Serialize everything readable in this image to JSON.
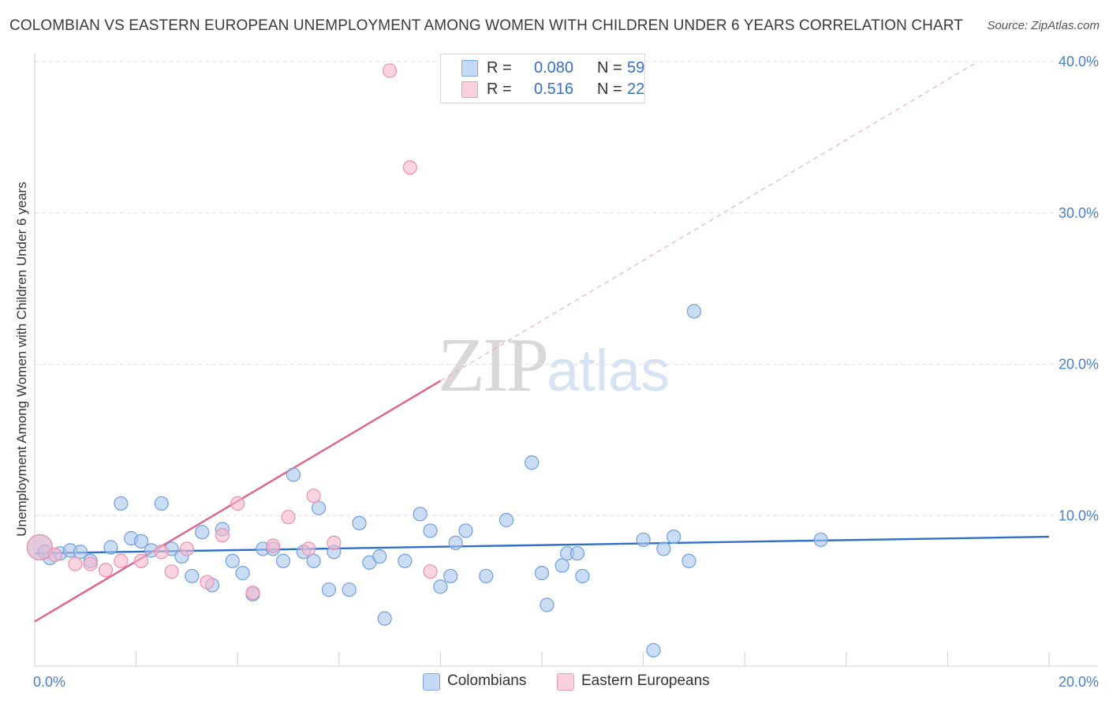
{
  "title": "COLOMBIAN VS EASTERN EUROPEAN UNEMPLOYMENT AMONG WOMEN WITH CHILDREN UNDER 6 YEARS CORRELATION CHART",
  "source": "Source: ZipAtlas.com",
  "watermark": {
    "zip": "ZIP",
    "atlas": "atlas"
  },
  "legend": {
    "rows": [
      {
        "r_label": "R =",
        "r_value": "0.080",
        "n_label": "N =",
        "n_value": "59",
        "color": "#a8c6ee"
      },
      {
        "r_label": "R =",
        "r_value": "0.516",
        "n_label": "N =",
        "n_value": "22",
        "color": "#f7b8cb"
      }
    ]
  },
  "bottom_legend": {
    "colombians": "Colombians",
    "eastern": "Eastern Europeans"
  },
  "chart_data": {
    "type": "scatter",
    "title": "COLOMBIAN VS EASTERN EUROPEAN UNEMPLOYMENT AMONG WOMEN WITH CHILDREN UNDER 6 YEARS CORRELATION CHART",
    "xlabel": "",
    "ylabel": "Unemployment Among Women with Children Under 6 years",
    "xlim": [
      0,
      20
    ],
    "ylim": [
      0,
      40
    ],
    "x_tick_labels": [
      {
        "value": 0,
        "label": "0.0%"
      },
      {
        "value": 20,
        "label": "20.0%"
      }
    ],
    "y_tick_labels": [
      {
        "value": 10,
        "label": "10.0%"
      },
      {
        "value": 20,
        "label": "20.0%"
      },
      {
        "value": 30,
        "label": "30.0%"
      },
      {
        "value": 40,
        "label": "40.0%"
      }
    ],
    "grid": true,
    "series": [
      {
        "name": "Colombians",
        "color": "#a8c6ee",
        "stroke": "#6f9fe0",
        "trend": {
          "x": [
            0,
            20
          ],
          "y": [
            7.5,
            8.6
          ],
          "color": "#2f6fcc"
        },
        "points": [
          [
            0.1,
            7.9
          ],
          [
            0.3,
            7.2
          ],
          [
            0.5,
            7.5
          ],
          [
            0.7,
            7.7
          ],
          [
            0.9,
            7.6
          ],
          [
            1.1,
            7.0
          ],
          [
            1.5,
            7.9
          ],
          [
            1.7,
            10.8
          ],
          [
            1.9,
            8.5
          ],
          [
            2.1,
            8.3
          ],
          [
            2.3,
            7.7
          ],
          [
            2.5,
            10.8
          ],
          [
            2.7,
            7.8
          ],
          [
            2.9,
            7.3
          ],
          [
            3.1,
            6.0
          ],
          [
            3.3,
            8.9
          ],
          [
            3.5,
            5.4
          ],
          [
            3.7,
            9.1
          ],
          [
            3.9,
            7.0
          ],
          [
            4.1,
            6.2
          ],
          [
            4.3,
            4.8
          ],
          [
            4.5,
            7.8
          ],
          [
            4.7,
            7.8
          ],
          [
            4.9,
            7.0
          ],
          [
            5.1,
            12.7
          ],
          [
            5.3,
            7.6
          ],
          [
            5.5,
            7.0
          ],
          [
            5.6,
            10.5
          ],
          [
            5.8,
            5.1
          ],
          [
            5.9,
            7.6
          ],
          [
            6.2,
            5.1
          ],
          [
            6.4,
            9.5
          ],
          [
            6.6,
            6.9
          ],
          [
            6.8,
            7.3
          ],
          [
            6.9,
            3.2
          ],
          [
            7.3,
            7.0
          ],
          [
            7.6,
            10.1
          ],
          [
            7.8,
            9.0
          ],
          [
            8.0,
            5.3
          ],
          [
            8.2,
            6.0
          ],
          [
            8.3,
            8.2
          ],
          [
            8.5,
            9.0
          ],
          [
            8.9,
            6.0
          ],
          [
            9.3,
            9.7
          ],
          [
            9.8,
            13.5
          ],
          [
            10.0,
            6.2
          ],
          [
            10.1,
            4.1
          ],
          [
            10.4,
            6.7
          ],
          [
            10.5,
            7.5
          ],
          [
            10.7,
            7.5
          ],
          [
            10.8,
            6.0
          ],
          [
            12.0,
            8.4
          ],
          [
            12.2,
            1.1
          ],
          [
            12.4,
            7.8
          ],
          [
            12.6,
            8.6
          ],
          [
            12.9,
            7.0
          ],
          [
            13.0,
            23.5
          ],
          [
            15.5,
            8.4
          ],
          [
            0.2,
            7.6
          ]
        ]
      },
      {
        "name": "Eastern Europeans",
        "color": "#f7b8cb",
        "stroke": "#ee8fac",
        "trend": {
          "x": [
            0,
            8.0
          ],
          "y": [
            3.0,
            18.9
          ],
          "ext_x": [
            8.0,
            18.6
          ],
          "ext_y": [
            18.9,
            40.0
          ],
          "color": "#e0608c"
        },
        "points": [
          [
            0.1,
            7.9
          ],
          [
            0.4,
            7.4
          ],
          [
            0.8,
            6.8
          ],
          [
            1.1,
            6.8
          ],
          [
            1.4,
            6.4
          ],
          [
            1.7,
            7.0
          ],
          [
            2.1,
            7.0
          ],
          [
            2.5,
            7.6
          ],
          [
            2.7,
            6.3
          ],
          [
            3.0,
            7.8
          ],
          [
            3.4,
            5.6
          ],
          [
            3.7,
            8.7
          ],
          [
            4.0,
            10.8
          ],
          [
            4.3,
            4.9
          ],
          [
            4.7,
            8.0
          ],
          [
            5.0,
            9.9
          ],
          [
            5.4,
            7.8
          ],
          [
            5.5,
            11.3
          ],
          [
            5.9,
            8.2
          ],
          [
            7.0,
            39.4
          ],
          [
            7.4,
            33.0
          ],
          [
            7.8,
            6.3
          ]
        ]
      }
    ]
  }
}
